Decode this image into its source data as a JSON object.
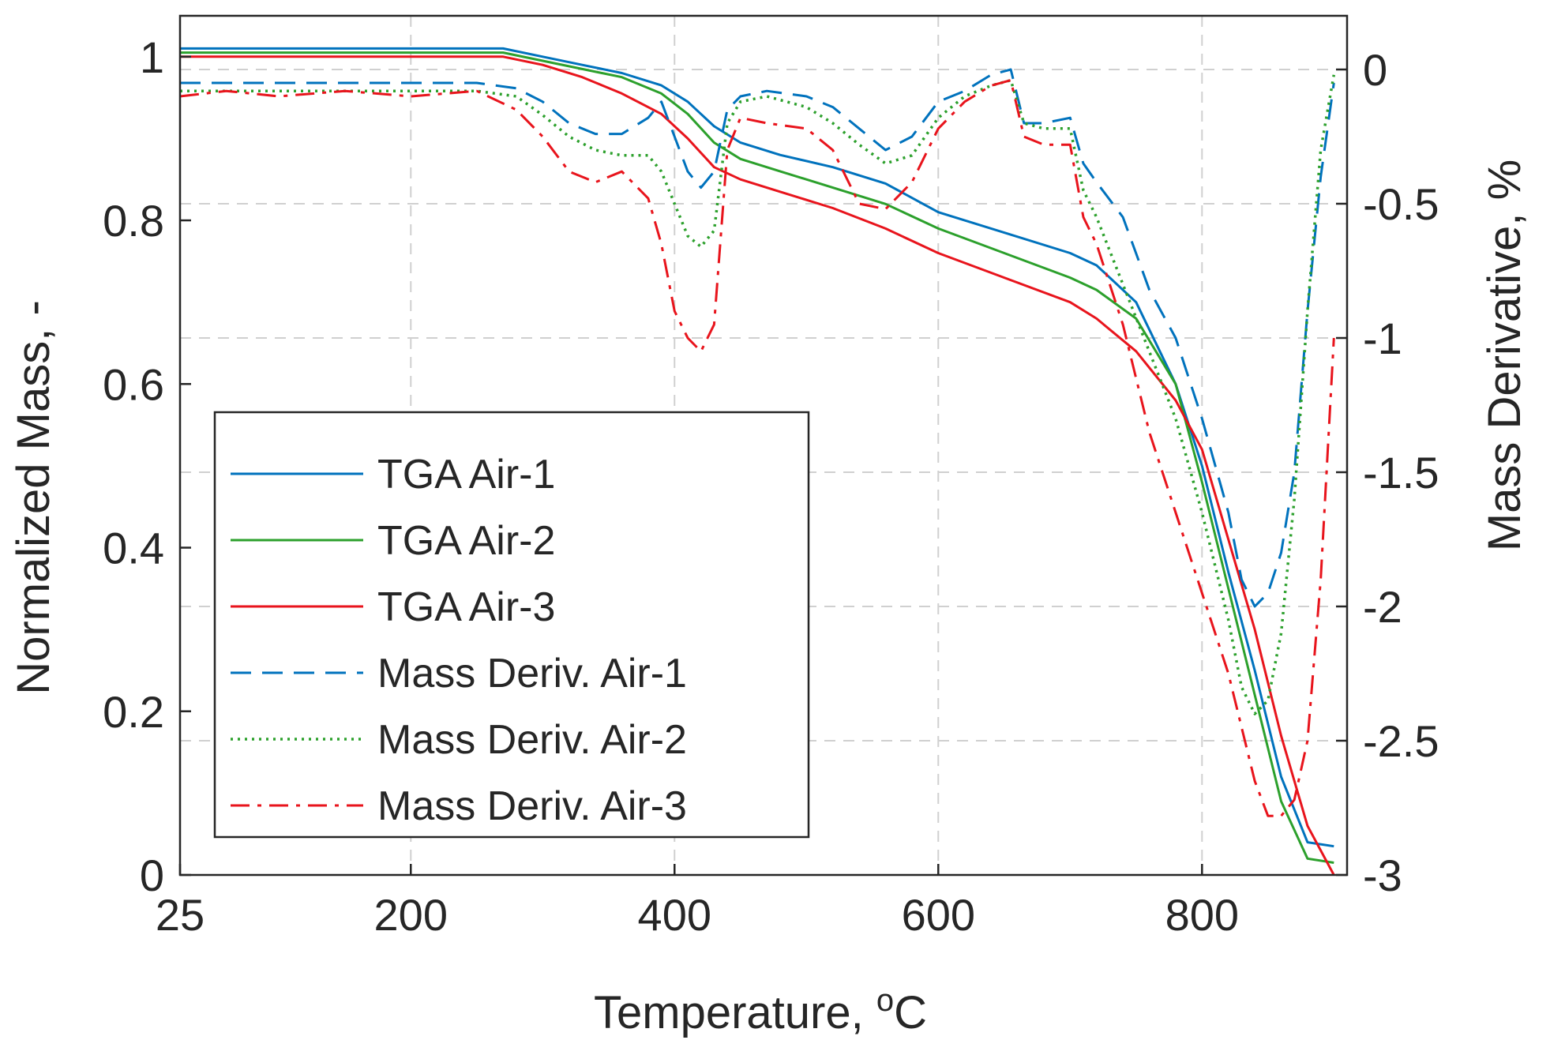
{
  "chart_data": {
    "type": "line",
    "title": "",
    "xlabel": "Temperature, ",
    "xlabel_unit_sup": "o",
    "xlabel_unit": "C",
    "ylabel_left": "Normalized Mass, -",
    "ylabel_right": "Mass Derivative, %",
    "xlim": [
      25,
      910
    ],
    "ylim_left": [
      0,
      1.05
    ],
    "ylim_right": [
      -3,
      0.2
    ],
    "x_ticks": [
      25,
      200,
      400,
      600,
      800
    ],
    "x_tick_labels": [
      "25",
      "200",
      "400",
      "600",
      "800"
    ],
    "y_left_ticks": [
      0,
      0.2,
      0.4,
      0.6,
      0.8,
      1
    ],
    "y_left_tick_labels": [
      "0",
      "0.2",
      "0.4",
      "0.6",
      "0.8",
      "1"
    ],
    "y_right_ticks": [
      -3,
      -2.5,
      -2,
      -1.5,
      -1,
      -0.5,
      0
    ],
    "y_right_tick_labels": [
      "-3",
      "-2.5",
      "-2",
      "-1.5",
      "-1",
      "-0.5",
      "0"
    ],
    "grid": true,
    "legend_position": "lower-left",
    "series": [
      {
        "name": "TGA Air-1",
        "axis": "left",
        "color": "#0072BD",
        "style": "solid",
        "x": [
          25,
          100,
          200,
          270,
          300,
          330,
          360,
          390,
          410,
          430,
          450,
          480,
          520,
          560,
          600,
          650,
          700,
          720,
          750,
          780,
          800,
          820,
          840,
          860,
          880,
          900
        ],
        "y": [
          1.01,
          1.01,
          1.01,
          1.01,
          1.0,
          0.99,
          0.98,
          0.965,
          0.945,
          0.915,
          0.895,
          0.88,
          0.865,
          0.845,
          0.81,
          0.785,
          0.76,
          0.745,
          0.7,
          0.6,
          0.5,
          0.37,
          0.25,
          0.12,
          0.04,
          0.035
        ]
      },
      {
        "name": "TGA Air-2",
        "axis": "left",
        "color": "#2CA02C",
        "style": "solid",
        "x": [
          25,
          100,
          200,
          270,
          300,
          330,
          360,
          390,
          410,
          430,
          450,
          480,
          520,
          560,
          600,
          650,
          700,
          720,
          750,
          780,
          800,
          820,
          840,
          860,
          880,
          900
        ],
        "y": [
          1.005,
          1.005,
          1.005,
          1.005,
          0.995,
          0.985,
          0.975,
          0.955,
          0.93,
          0.895,
          0.875,
          0.86,
          0.84,
          0.82,
          0.79,
          0.76,
          0.73,
          0.715,
          0.68,
          0.6,
          0.48,
          0.35,
          0.22,
          0.09,
          0.02,
          0.015
        ]
      },
      {
        "name": "TGA Air-3",
        "axis": "left",
        "color": "#E8141C",
        "style": "solid",
        "x": [
          25,
          100,
          200,
          270,
          300,
          330,
          360,
          390,
          410,
          430,
          450,
          480,
          520,
          560,
          600,
          650,
          700,
          720,
          750,
          780,
          800,
          820,
          840,
          860,
          880,
          900
        ],
        "y": [
          1.0,
          1.0,
          1.0,
          1.0,
          0.99,
          0.975,
          0.955,
          0.93,
          0.9,
          0.865,
          0.85,
          0.835,
          0.815,
          0.79,
          0.76,
          0.73,
          0.7,
          0.68,
          0.64,
          0.58,
          0.52,
          0.41,
          0.3,
          0.17,
          0.06,
          0.0
        ]
      },
      {
        "name": "Mass Deriv. Air-1",
        "axis": "right",
        "color": "#0072BD",
        "style": "dashed",
        "x": [
          25,
          60,
          100,
          150,
          200,
          250,
          280,
          300,
          320,
          340,
          360,
          380,
          390,
          400,
          410,
          420,
          430,
          440,
          450,
          470,
          500,
          520,
          540,
          560,
          580,
          600,
          620,
          640,
          655,
          665,
          680,
          700,
          710,
          720,
          740,
          760,
          780,
          800,
          820,
          830,
          840,
          850,
          860,
          870,
          880,
          890,
          900
        ],
        "y": [
          -0.05,
          -0.05,
          -0.05,
          -0.05,
          -0.05,
          -0.05,
          -0.07,
          -0.12,
          -0.2,
          -0.24,
          -0.24,
          -0.18,
          -0.12,
          -0.25,
          -0.38,
          -0.44,
          -0.38,
          -0.15,
          -0.1,
          -0.08,
          -0.1,
          -0.14,
          -0.22,
          -0.3,
          -0.25,
          -0.12,
          -0.08,
          -0.02,
          0.0,
          -0.2,
          -0.2,
          -0.18,
          -0.35,
          -0.42,
          -0.55,
          -0.82,
          -1.0,
          -1.3,
          -1.65,
          -1.9,
          -2.0,
          -1.95,
          -1.8,
          -1.5,
          -0.9,
          -0.4,
          -0.05
        ]
      },
      {
        "name": "Mass Deriv. Air-2",
        "axis": "right",
        "color": "#2CA02C",
        "style": "dotted",
        "x": [
          25,
          60,
          100,
          150,
          200,
          250,
          280,
          300,
          320,
          340,
          360,
          380,
          390,
          400,
          410,
          420,
          430,
          440,
          450,
          470,
          500,
          520,
          540,
          560,
          580,
          600,
          620,
          640,
          655,
          665,
          680,
          700,
          710,
          720,
          740,
          760,
          780,
          800,
          820,
          830,
          840,
          850,
          860,
          870,
          880,
          890,
          900
        ],
        "y": [
          -0.08,
          -0.08,
          -0.08,
          -0.08,
          -0.08,
          -0.08,
          -0.1,
          -0.17,
          -0.25,
          -0.3,
          -0.32,
          -0.32,
          -0.38,
          -0.5,
          -0.62,
          -0.66,
          -0.6,
          -0.2,
          -0.12,
          -0.1,
          -0.14,
          -0.2,
          -0.28,
          -0.35,
          -0.32,
          -0.18,
          -0.1,
          -0.06,
          -0.04,
          -0.2,
          -0.22,
          -0.22,
          -0.45,
          -0.55,
          -0.8,
          -1.05,
          -1.3,
          -1.65,
          -2.05,
          -2.3,
          -2.4,
          -2.35,
          -2.1,
          -1.6,
          -0.9,
          -0.3,
          -0.02
        ]
      },
      {
        "name": "Mass Deriv. Air-3",
        "axis": "right",
        "color": "#E8141C",
        "style": "dashdot",
        "x": [
          25,
          60,
          100,
          150,
          200,
          250,
          280,
          300,
          320,
          340,
          360,
          380,
          390,
          400,
          410,
          420,
          430,
          440,
          450,
          470,
          500,
          520,
          540,
          560,
          580,
          600,
          620,
          640,
          655,
          665,
          680,
          700,
          710,
          720,
          740,
          760,
          780,
          800,
          820,
          830,
          840,
          850,
          860,
          870,
          880,
          890,
          900
        ],
        "y": [
          -0.1,
          -0.08,
          -0.1,
          -0.08,
          -0.1,
          -0.08,
          -0.15,
          -0.25,
          -0.38,
          -0.42,
          -0.38,
          -0.48,
          -0.65,
          -0.9,
          -1.0,
          -1.05,
          -0.95,
          -0.3,
          -0.18,
          -0.2,
          -0.22,
          -0.3,
          -0.5,
          -0.52,
          -0.42,
          -0.22,
          -0.12,
          -0.06,
          -0.04,
          -0.25,
          -0.28,
          -0.28,
          -0.55,
          -0.65,
          -0.95,
          -1.35,
          -1.65,
          -1.95,
          -2.25,
          -2.45,
          -2.65,
          -2.78,
          -2.78,
          -2.72,
          -2.5,
          -1.9,
          -1.0
        ]
      }
    ]
  }
}
